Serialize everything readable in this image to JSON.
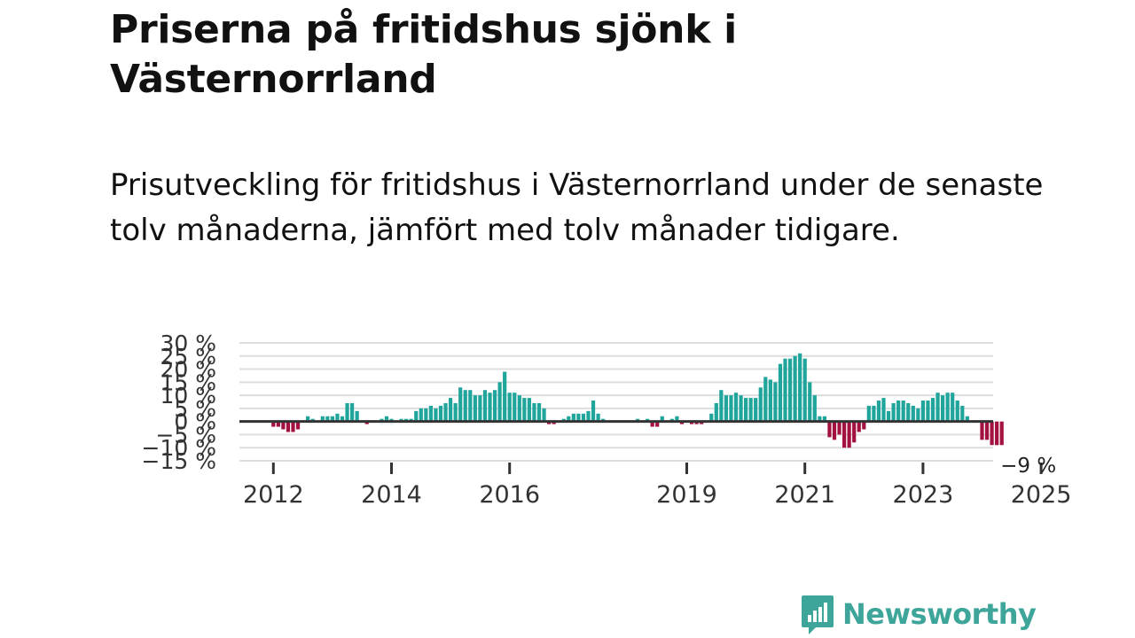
{
  "title": "Priserna på fritidshus sjönk i Västernorrland",
  "subtitle": "Prisutveckling för fritidshus i Västernorrland under de senaste tolv månaderna, jämfört med tolv månader tidigare.",
  "brand": {
    "name": "Newsworthy",
    "color": "#3ea59a"
  },
  "colors": {
    "positive": "#1fa59c",
    "negative": "#a3113f",
    "zero_line": "#333333",
    "grid": "#dddddd"
  },
  "chart_data": {
    "type": "bar",
    "title": "",
    "xlabel": "",
    "ylabel": "",
    "ylim": [
      -15,
      30
    ],
    "yticks": [
      -15,
      -10,
      -5,
      0,
      5,
      10,
      15,
      20,
      25,
      30
    ],
    "ytick_labels": [
      "−15 %",
      "−10 %",
      "−5 %",
      "0 %",
      "5 %",
      "10 %",
      "15 %",
      "20 %",
      "25 %",
      "30 %"
    ],
    "xticks": [
      {
        "label": "2012",
        "index": 6
      },
      {
        "label": "2014",
        "index": 30
      },
      {
        "label": "2016",
        "index": 54
      },
      {
        "label": "2019",
        "index": 90
      },
      {
        "label": "2021",
        "index": 114
      },
      {
        "label": "2023",
        "index": 138
      },
      {
        "label": "2025",
        "index": 162
      }
    ],
    "last_value_label": "−9 %",
    "start": "2011-01",
    "values": [
      0,
      0,
      0,
      0,
      0,
      0,
      -2,
      -2,
      -3,
      -4,
      -4,
      -3,
      0,
      2,
      1,
      0,
      2,
      2,
      2,
      3,
      2,
      7,
      7,
      4,
      0,
      -1,
      0,
      0,
      1,
      2,
      1,
      0,
      1,
      1,
      1,
      4,
      5,
      5,
      6,
      5,
      6,
      7,
      9,
      7,
      13,
      12,
      12,
      10,
      10,
      12,
      11,
      12,
      15,
      19,
      11,
      11,
      10,
      9,
      9,
      7,
      7,
      5,
      -1,
      -1,
      0,
      1,
      2,
      3,
      3,
      3,
      4,
      8,
      3,
      1,
      0,
      0,
      0,
      0,
      0,
      0,
      1,
      0,
      1,
      -2,
      -2,
      2,
      0,
      1,
      2,
      -1,
      0,
      -1,
      -1,
      -1,
      0,
      3,
      7,
      12,
      10,
      10,
      11,
      10,
      9,
      9,
      9,
      13,
      17,
      16,
      15,
      22,
      24,
      24,
      25,
      26,
      24,
      15,
      10,
      2,
      2,
      -6,
      -7,
      -5,
      -10,
      -10,
      -8,
      -4,
      -3,
      6,
      6,
      8,
      9,
      4,
      7,
      8,
      8,
      7,
      6,
      5,
      8,
      8,
      9,
      11,
      10,
      11,
      11,
      8,
      6,
      2,
      0,
      0,
      -7,
      -7,
      -9,
      -9,
      -9
    ]
  }
}
